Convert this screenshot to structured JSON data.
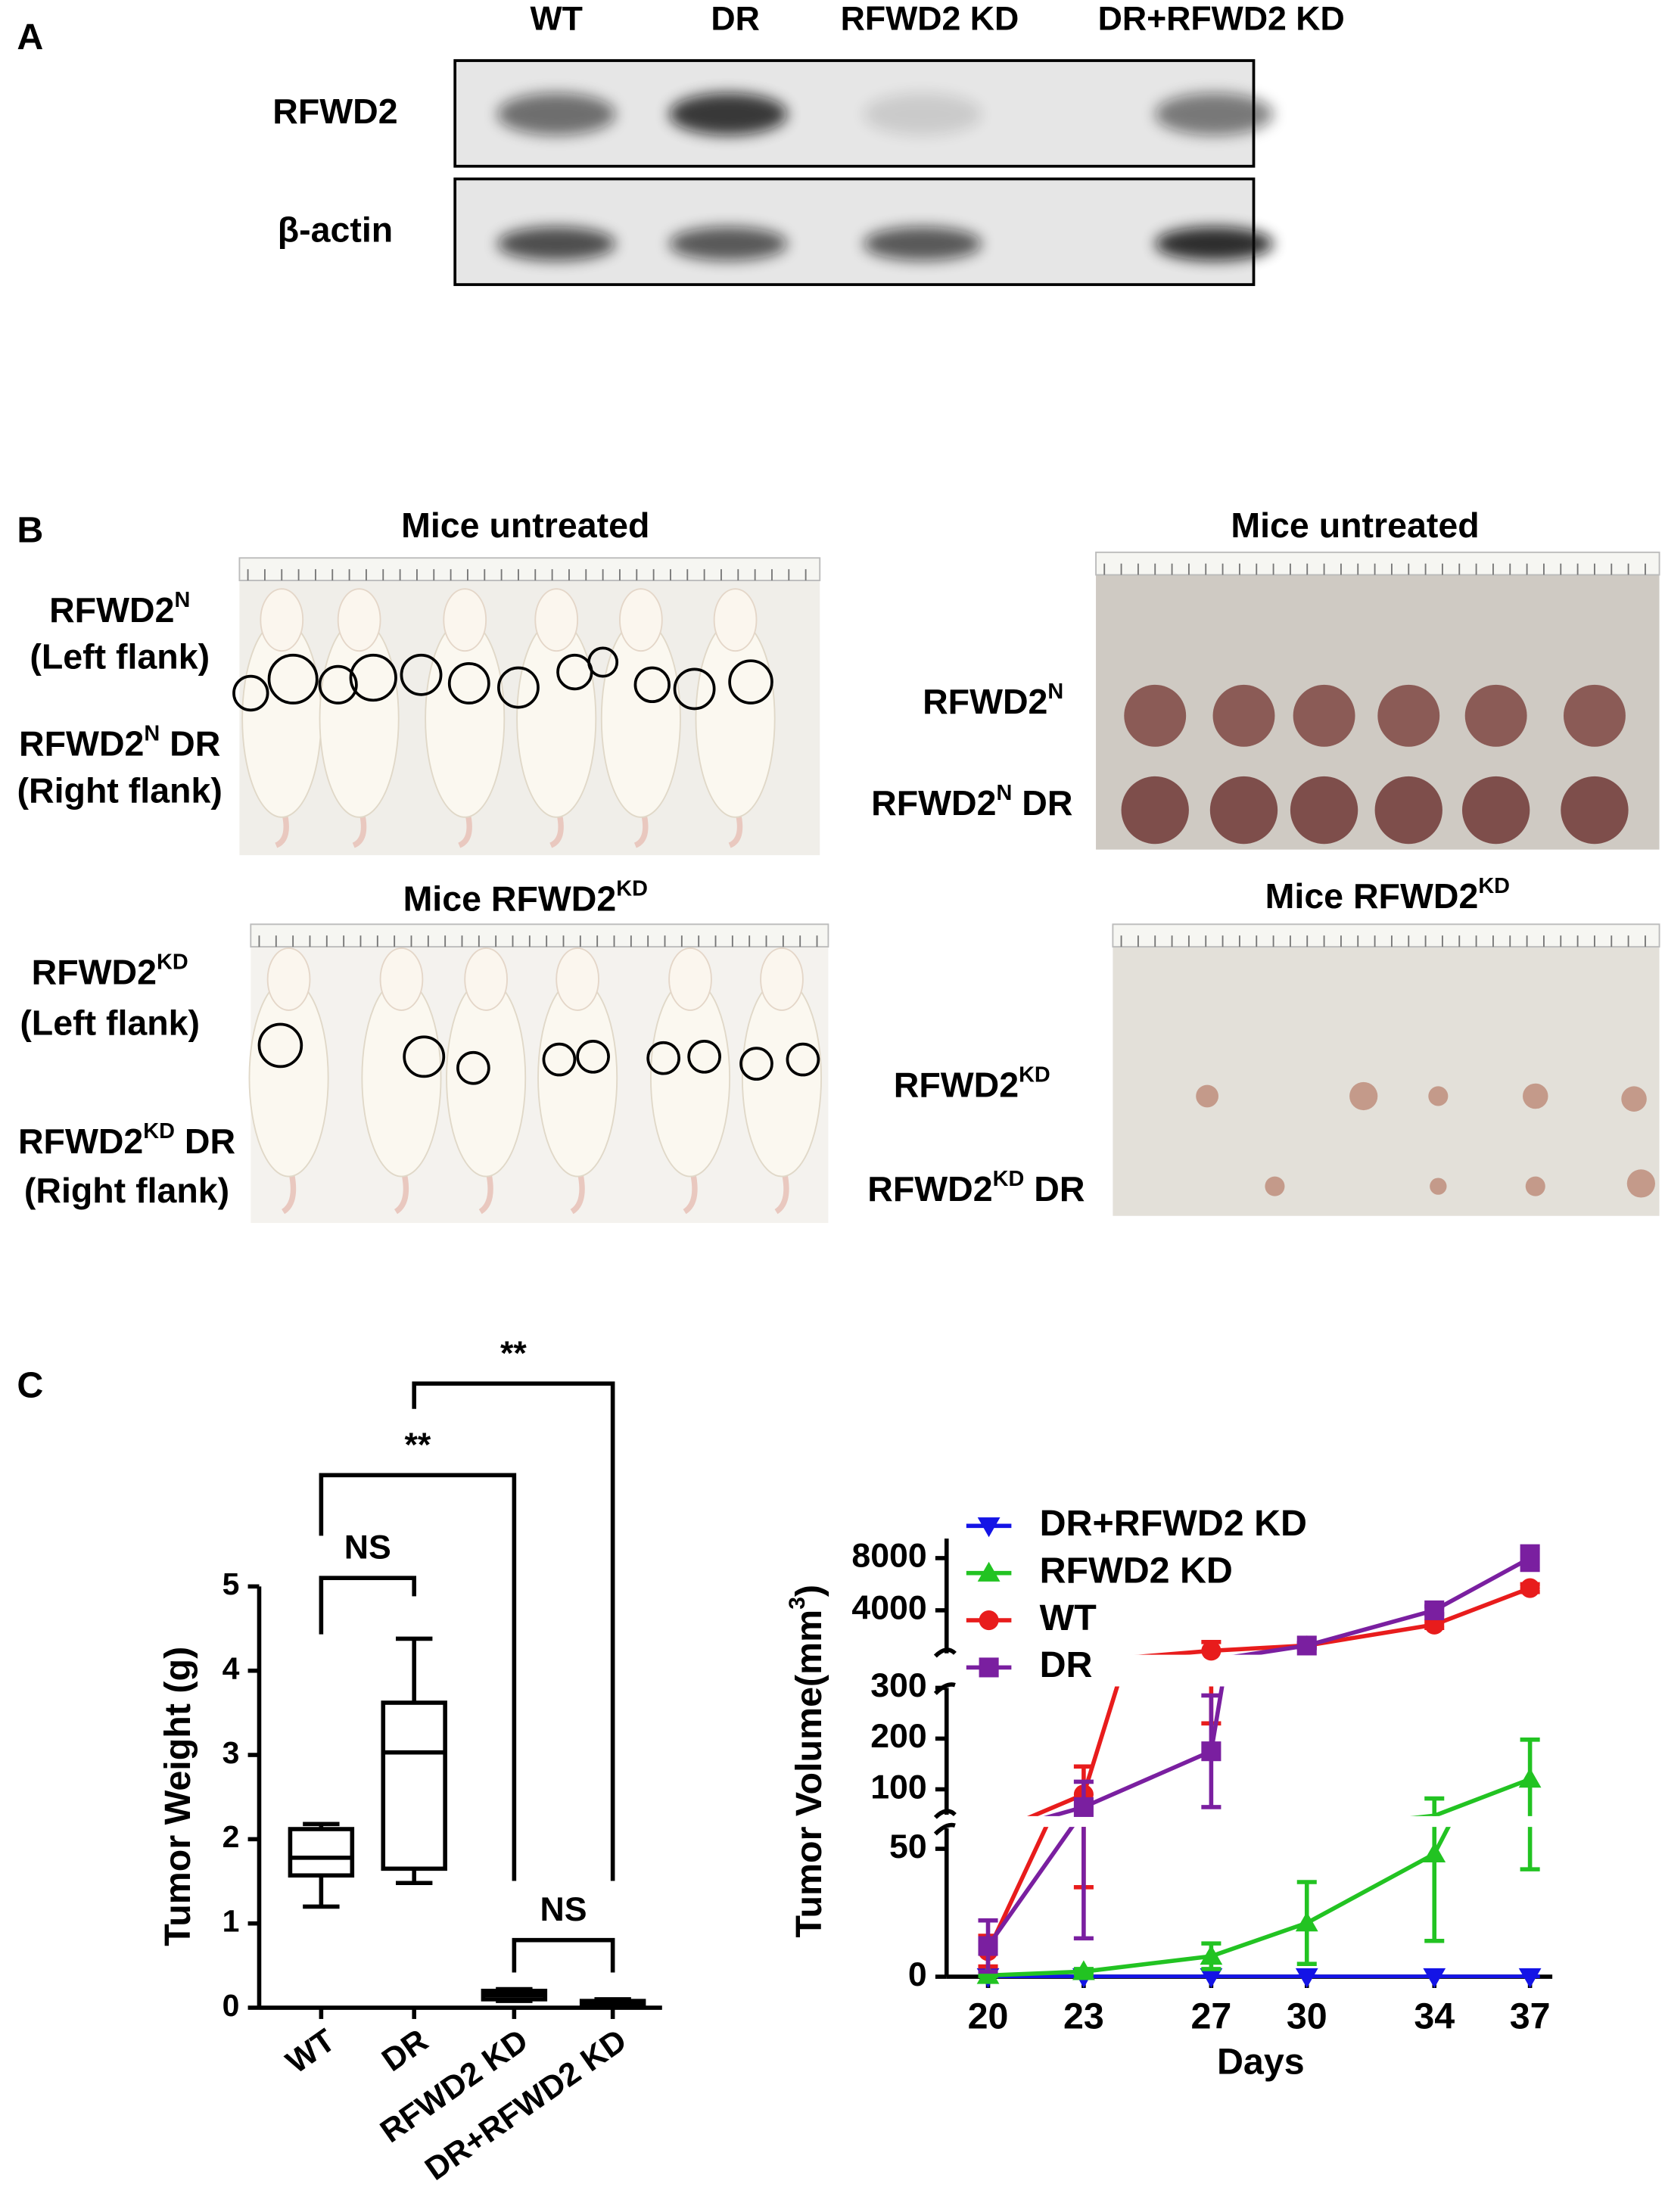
{
  "panel_a": {
    "label": "A",
    "columns": [
      "WT",
      "DR",
      "RFWD2 KD",
      "DR+RFWD2 KD"
    ],
    "rows": [
      "RFWD2",
      "β-actin"
    ]
  },
  "panel_b": {
    "label": "B",
    "titles": [
      {
        "text": "Mice untreated"
      },
      {
        "text": "Mice untreated"
      },
      {
        "text": "Mice RFWD2",
        "sup": "KD"
      },
      {
        "text": "Mice RFWD2",
        "sup": "KD"
      }
    ],
    "mice_labels": [
      {
        "text": "RFWD2",
        "sup": "N"
      },
      "(Left flank)",
      {
        "text": "RFWD2",
        "sup": "N",
        "after": " DR"
      },
      "(Right flank)",
      {
        "text": "RFWD2",
        "sup": "KD"
      },
      "(Left flank)",
      {
        "text": "RFWD2",
        "sup": "KD",
        "after": " DR"
      },
      "(Right flank)"
    ],
    "tumor_labels": [
      {
        "text": "RFWD2",
        "sup": "N"
      },
      {
        "text": "RFWD2",
        "sup": "N",
        "after": " DR"
      },
      {
        "text": "RFWD2",
        "sup": "KD"
      },
      {
        "text": "RFWD2",
        "sup": "KD",
        "after": " DR"
      }
    ]
  },
  "panel_c": {
    "label": "C"
  },
  "chart_data": [
    {
      "type": "box",
      "ylabel": "Tumor Weight (g)",
      "categories": [
        "WT",
        "DR",
        "RFWD2 KD",
        "DR+RFWD2 KD"
      ],
      "boxes": [
        {
          "min": 1.2,
          "q1": 1.57,
          "median": 1.78,
          "q3": 2.12,
          "max": 2.18
        },
        {
          "min": 1.48,
          "q1": 1.65,
          "median": 3.03,
          "q3": 3.62,
          "max": 4.38
        },
        {
          "min": 0.08,
          "q1": 0.1,
          "median": 0.15,
          "q3": 0.2,
          "max": 0.22
        },
        {
          "min": 0.02,
          "q1": 0.04,
          "median": 0.06,
          "q3": 0.08,
          "max": 0.1
        }
      ],
      "ylim": [
        0,
        5
      ],
      "yticks": [
        0,
        1,
        2,
        3,
        4,
        5
      ],
      "color": "#000000",
      "comparisons": [
        {
          "text": "NS",
          "groups": [
            0,
            1
          ]
        },
        {
          "text": "**",
          "groups": [
            0,
            2
          ]
        },
        {
          "text": "**",
          "groups": [
            1,
            3
          ]
        },
        {
          "text": "NS",
          "groups": [
            2,
            3
          ]
        }
      ]
    },
    {
      "type": "line",
      "xlabel": "Days",
      "ylabel": {
        "text": "Tumor Volume(mm",
        "sup": "3",
        "after": ")"
      },
      "x": [
        20,
        23,
        27,
        30,
        34,
        37
      ],
      "xlim": [
        18.7,
        37.7
      ],
      "xticks": [
        20,
        23,
        27,
        30,
        34,
        37
      ],
      "ysegments": [
        {
          "ylim": [
            0,
            58
          ],
          "yticks": [
            0,
            50
          ]
        },
        {
          "ylim": [
            50,
            300
          ],
          "yticks": [
            100,
            200,
            300
          ]
        },
        {
          "ylim": [
            700,
            9500
          ],
          "yticks": [
            4000,
            8000
          ]
        }
      ],
      "legend": "upper left",
      "series": [
        {
          "name": "DR+RFWD2 KD",
          "color": "#1414e6",
          "marker": "triangle-down",
          "values": [
            0,
            0,
            0,
            0,
            0,
            0
          ],
          "errors": [
            0,
            0,
            0,
            0,
            0,
            0
          ]
        },
        {
          "name": "RFWD2 KD",
          "color": "#22c322",
          "marker": "triangle-up",
          "values": [
            0.5,
            2,
            8,
            21,
            48,
            120
          ],
          "errors": [
            0.5,
            1,
            5,
            16,
            34,
            78
          ]
        },
        {
          "name": "WT",
          "color": "#e81c1c",
          "marker": "circle",
          "values": [
            10,
            90,
            900,
            1300,
            2900,
            5700
          ],
          "errors": [
            6,
            55,
            670,
            150,
            250,
            300
          ]
        },
        {
          "name": "DR",
          "color": "#7a1fa0",
          "marker": "square",
          "values": [
            12,
            65,
            175,
            1300,
            4000,
            8000
          ],
          "errors": [
            10,
            50,
            110,
            200,
            300,
            900
          ]
        }
      ]
    }
  ]
}
